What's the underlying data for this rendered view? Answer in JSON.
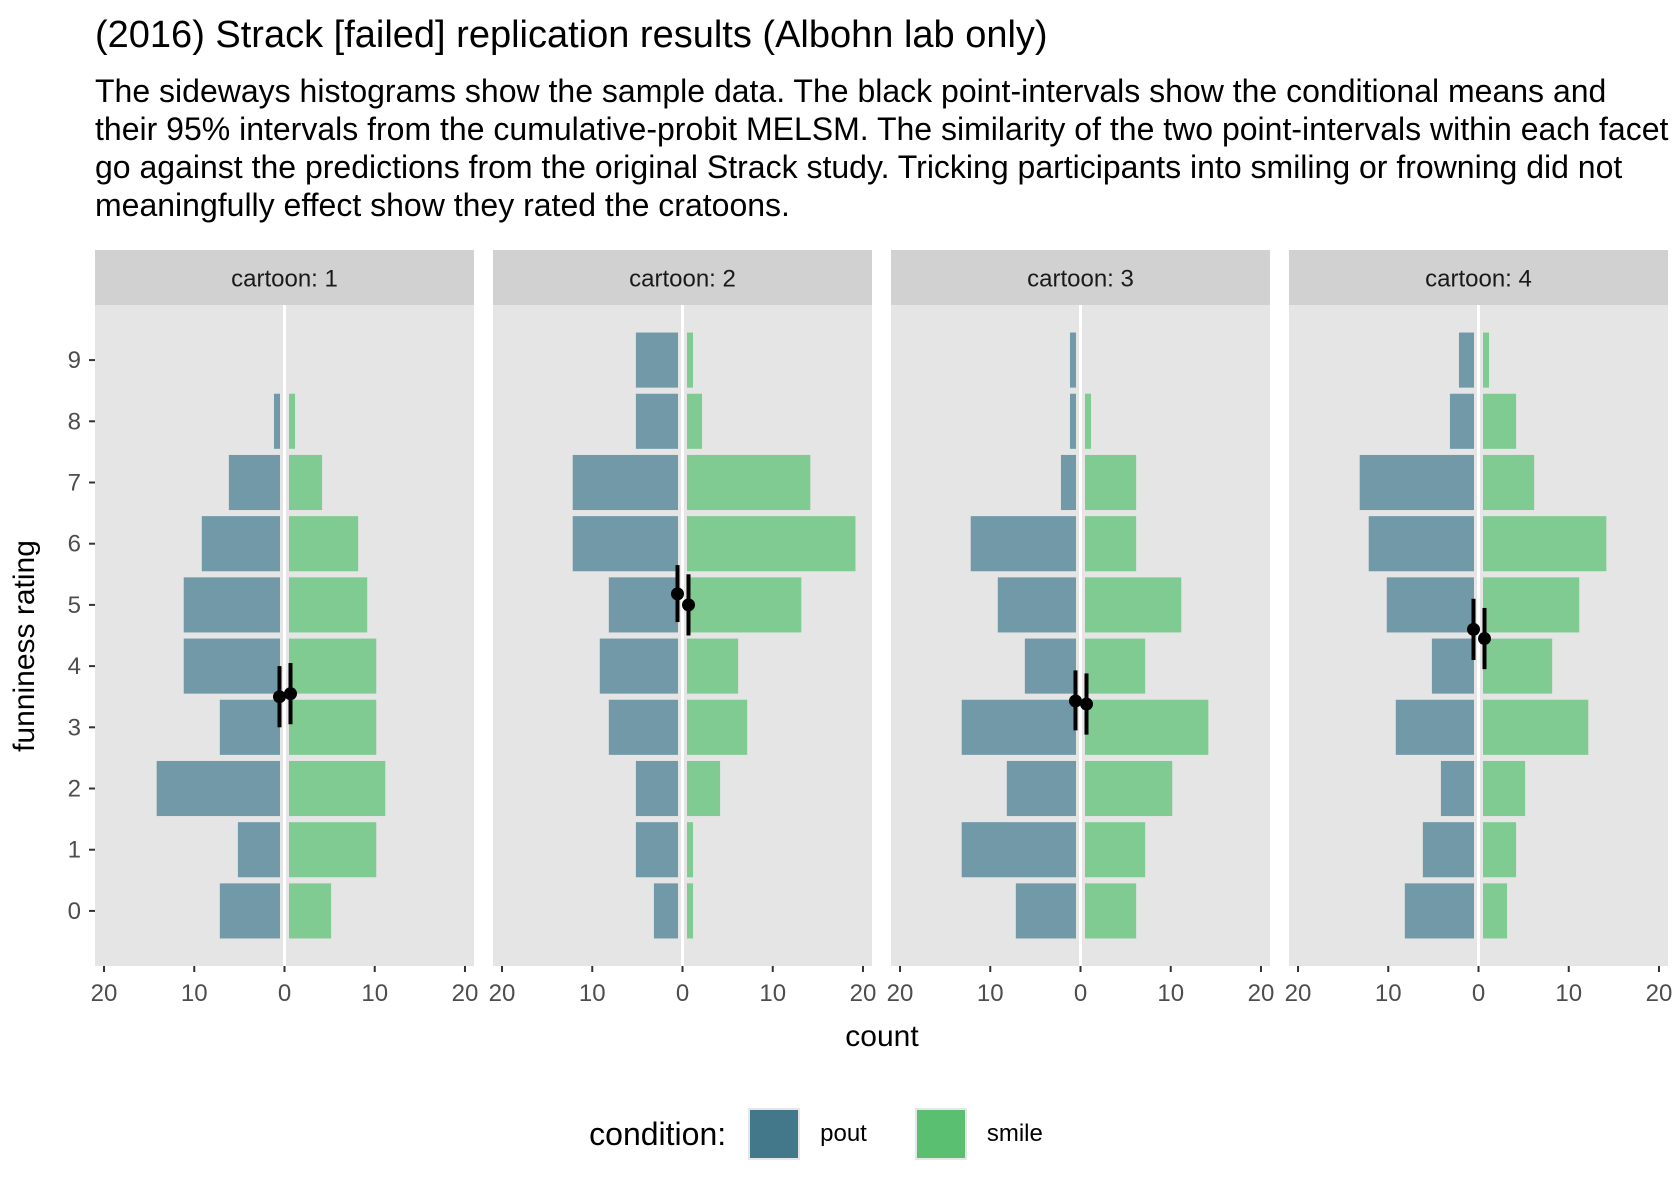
{
  "chart_data": {
    "type": "bar",
    "orientation": "horizontal-mirrored",
    "title": "(2016) Strack [failed] replication results (Albohn lab only)",
    "subtitle": "The sideways histograms show the sample data. The black point-intervals show the conditional means and their 95% intervals from the cumulative-probit MELSM. The similarity of the two point-intervals within each facet go against the predictions from the original Strack study. Tricking participants into smiling or frowning did not meaningfully effect show they rated the cratoons.",
    "xlabel": "count",
    "ylabel": "funniness rating",
    "xlim": [
      -21,
      21
    ],
    "ylim": [
      -0.9,
      9.9
    ],
    "x_ticks": [
      -20,
      -10,
      0,
      10,
      20
    ],
    "x_tick_labels": [
      "20",
      "10",
      "0",
      "10",
      "20"
    ],
    "y_ticks": [
      0,
      1,
      2,
      3,
      4,
      5,
      6,
      7,
      8,
      9
    ],
    "y_tick_labels": [
      "0",
      "1",
      "2",
      "3",
      "4",
      "5",
      "6",
      "7",
      "8",
      "9"
    ],
    "grid": true,
    "legend": {
      "title": "condition:",
      "position": "bottom",
      "entries": [
        {
          "label": "pout",
          "color": "#43788a"
        },
        {
          "label": "smile",
          "color": "#5bbf72"
        }
      ]
    },
    "colors": {
      "pout": "#7199a8",
      "smile": "#80cb92",
      "panel_background": "#e5e5e5",
      "strip_background": "#d1d1d1",
      "interval": "#000000"
    },
    "ratings": [
      0,
      1,
      2,
      3,
      4,
      5,
      6,
      7,
      8,
      9
    ],
    "facets": [
      {
        "label": "cartoon: 1",
        "pout": [
          7,
          5,
          14,
          7,
          11,
          11,
          9,
          6,
          1,
          0
        ],
        "smile": [
          5,
          10,
          11,
          10,
          10,
          9,
          8,
          4,
          1,
          0
        ],
        "intervals": [
          {
            "condition": "pout",
            "mean": 3.5,
            "lower": 3.0,
            "upper": 4.0
          },
          {
            "condition": "smile",
            "mean": 3.55,
            "lower": 3.05,
            "upper": 4.05
          }
        ]
      },
      {
        "label": "cartoon: 2",
        "pout": [
          3,
          5,
          5,
          8,
          9,
          8,
          12,
          12,
          5,
          5
        ],
        "smile": [
          1,
          1,
          4,
          7,
          6,
          13,
          19,
          14,
          2,
          1
        ],
        "intervals": [
          {
            "condition": "pout",
            "mean": 5.18,
            "lower": 4.72,
            "upper": 5.65
          },
          {
            "condition": "smile",
            "mean": 5.0,
            "lower": 4.5,
            "upper": 5.5
          }
        ]
      },
      {
        "label": "cartoon: 3",
        "pout": [
          7,
          13,
          8,
          13,
          6,
          9,
          12,
          2,
          1,
          1
        ],
        "smile": [
          6,
          7,
          10,
          14,
          7,
          11,
          6,
          6,
          1,
          0
        ],
        "intervals": [
          {
            "condition": "pout",
            "mean": 3.43,
            "lower": 2.95,
            "upper": 3.93
          },
          {
            "condition": "smile",
            "mean": 3.38,
            "lower": 2.88,
            "upper": 3.88
          }
        ]
      },
      {
        "label": "cartoon: 4",
        "pout": [
          8,
          6,
          4,
          9,
          5,
          10,
          12,
          13,
          3,
          2
        ],
        "smile": [
          3,
          4,
          5,
          12,
          8,
          11,
          14,
          6,
          4,
          1
        ],
        "intervals": [
          {
            "condition": "pout",
            "mean": 4.6,
            "lower": 4.1,
            "upper": 5.1
          },
          {
            "condition": "smile",
            "mean": 4.45,
            "lower": 3.95,
            "upper": 4.95
          }
        ]
      }
    ]
  }
}
